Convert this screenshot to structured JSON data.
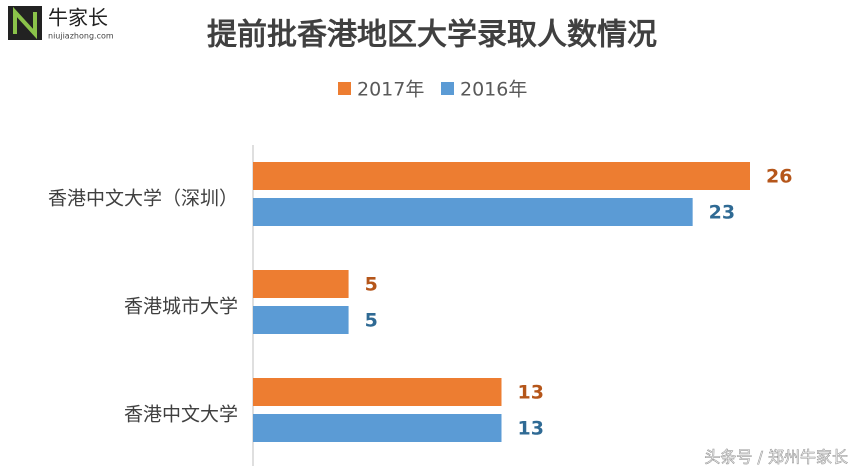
{
  "logo": {
    "name": "牛家长",
    "url": "niujiazhong.com"
  },
  "watermark": "头条号 / 郑州牛家长",
  "chart_data": {
    "type": "bar",
    "orientation": "horizontal",
    "title": "提前批香港地区大学录取人数情况",
    "categories": [
      "香港中文大学（深圳）",
      "香港城市大学",
      "香港中文大学"
    ],
    "series": [
      {
        "name": "2017年",
        "color": "#ED7D31",
        "label_color": "#B5561A",
        "values": [
          26,
          5,
          13
        ]
      },
      {
        "name": "2016年",
        "color": "#5B9BD5",
        "label_color": "#2F6A94",
        "values": [
          23,
          5,
          13
        ]
      }
    ],
    "legend": "top",
    "grid": false
  }
}
